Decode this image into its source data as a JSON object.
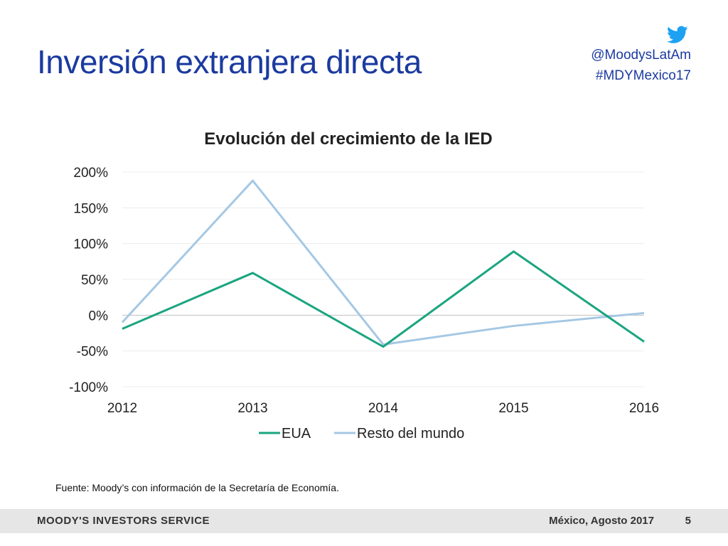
{
  "slide": {
    "title": "Inversión extranjera directa",
    "twitter_handle": "@MoodysLatAm",
    "hashtag": "#MDYMexico17"
  },
  "icons": {
    "twitter": "twitter-bird-icon"
  },
  "colors": {
    "title": "#1b3aa0",
    "twitter": "#1da1f2",
    "series_eua": "#1aa57f",
    "series_resto": "#a5c8e4"
  },
  "chart_data": {
    "type": "line",
    "title": "Evolución del crecimiento de la IED",
    "x": [
      "2012",
      "2013",
      "2014",
      "2015",
      "2016"
    ],
    "y_ticks": [
      "200%",
      "150%",
      "100%",
      "50%",
      "0%",
      "-50%",
      "-100%"
    ],
    "ylim": [
      -100,
      200
    ],
    "grid": true,
    "legend_position": "bottom",
    "series": [
      {
        "name": "EUA",
        "values": [
          -19,
          59,
          -44,
          89,
          -37
        ]
      },
      {
        "name": "Resto del mundo",
        "values": [
          -10,
          188,
          -41,
          -15,
          3
        ]
      }
    ]
  },
  "source_note": "Fuente: Moody’s con información de la Secretaría de Economía.",
  "footer": {
    "logo_text": "MOODY'S INVESTORS SERVICE",
    "location_date": "México, Agosto 2017",
    "page_number": "5"
  }
}
